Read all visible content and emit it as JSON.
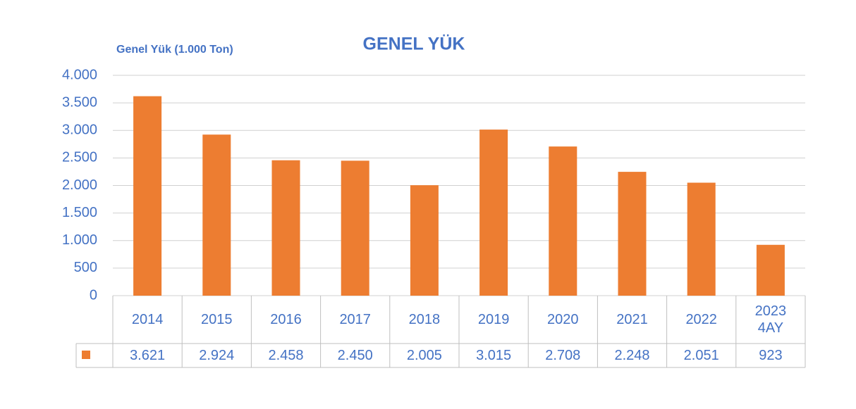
{
  "chart_data": {
    "type": "bar",
    "title": "GENEL YÜK",
    "y_label": "Genel Yük (1.000 Ton)",
    "categories": [
      "2014",
      "2015",
      "2016",
      "2017",
      "2018",
      "2019",
      "2020",
      "2021",
      "2022",
      "2023\n4AY"
    ],
    "values": [
      3621,
      2924,
      2458,
      2450,
      2005,
      3015,
      2708,
      2248,
      2051,
      923
    ],
    "value_labels": [
      "3.621",
      "2.924",
      "2.458",
      "2.450",
      "2.005",
      "3.015",
      "2.708",
      "2.248",
      "2.051",
      "923"
    ],
    "color": "#ed7d31",
    "ylim": [
      0,
      4000
    ],
    "yticks": [
      0,
      500,
      {
        "value": 1000,
        "label": "1.000"
      },
      {
        "value": 1500,
        "label": "1.500"
      },
      {
        "value": 2000,
        "label": "2.000"
      },
      {
        "value": 2500,
        "label": "2.500"
      },
      {
        "value": 3000,
        "label": "3.000"
      },
      {
        "value": 3500,
        "label": "3.500"
      },
      {
        "value": 4000,
        "label": "4.000"
      }
    ],
    "grid": true
  }
}
